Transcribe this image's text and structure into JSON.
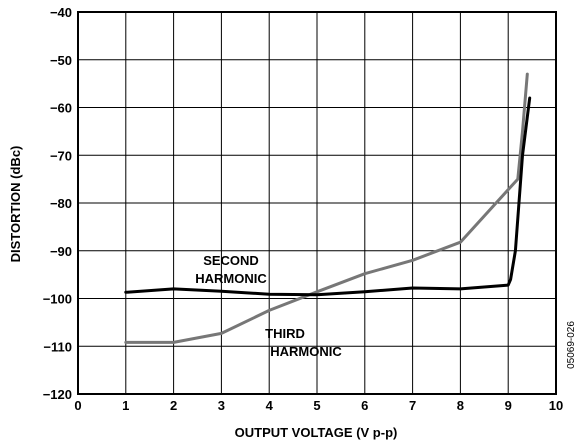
{
  "chart_data": {
    "type": "line",
    "title": "",
    "xlabel": "OUTPUT VOLTAGE (V p-p)",
    "ylabel": "DISTORTION (dBc)",
    "xlim": [
      0,
      10
    ],
    "ylim": [
      -120,
      -40
    ],
    "xticks": [
      0,
      1,
      2,
      3,
      4,
      5,
      6,
      7,
      8,
      9,
      10
    ],
    "yticks": [
      -40,
      -50,
      -60,
      -70,
      -80,
      -90,
      -100,
      -110,
      -120
    ],
    "xtick_labels": [
      "0",
      "1",
      "2",
      "3",
      "4",
      "5",
      "6",
      "7",
      "8",
      "9",
      "10"
    ],
    "ytick_labels": [
      "−40",
      "−50",
      "−60",
      "−70",
      "−80",
      "−90",
      "−100",
      "−110",
      "−120"
    ],
    "grid": true,
    "legend": "none",
    "series": [
      {
        "name": "SECOND HARMONIC",
        "label_lines": [
          "SECOND",
          "HARMONIC"
        ],
        "color": "#000000",
        "x": [
          1,
          2,
          3,
          4,
          5,
          6,
          7,
          8,
          8.5,
          9,
          9.05,
          9.15,
          9.3,
          9.4,
          9.45
        ],
        "y": [
          -98.7,
          -98,
          -98.5,
          -99.1,
          -99.2,
          -98.6,
          -97.8,
          -98,
          -97.6,
          -97.2,
          -96,
          -90,
          -70,
          -62,
          -58
        ]
      },
      {
        "name": "THIRD HARMONIC",
        "label_lines": [
          "THIRD",
          "HARMONIC"
        ],
        "color": "#777777",
        "x": [
          1,
          2,
          3,
          4,
          5,
          6,
          7,
          8,
          9,
          9.2,
          9.3,
          9.4
        ],
        "y": [
          -109.2,
          -109.2,
          -107.3,
          -102.5,
          -98.6,
          -94.8,
          -92,
          -88.2,
          -77.2,
          -75,
          -65,
          -53
        ]
      }
    ],
    "figure_id": "05069-026"
  }
}
